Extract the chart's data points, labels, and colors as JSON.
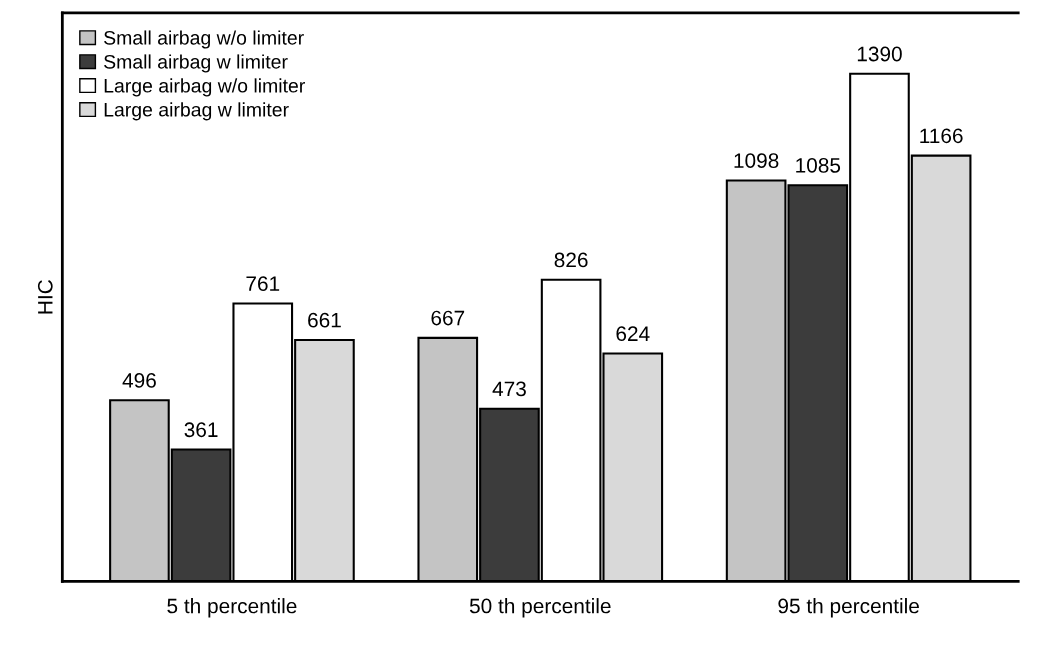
{
  "chart_data": {
    "type": "bar",
    "ylabel": "HIC",
    "categories": [
      "5 th percentile",
      "50 th percentile",
      "95 th percentile"
    ],
    "series": [
      {
        "name": "Small airbag w/o limiter",
        "color": "#c4c4c4",
        "values": [
          496,
          667,
          1098
        ]
      },
      {
        "name": "Small airbag w limiter",
        "color": "#3c3c3c",
        "values": [
          361,
          473,
          1085
        ]
      },
      {
        "name": "Large airbag w/o limiter",
        "color": "#ffffff",
        "values": [
          761,
          826,
          1390
        ]
      },
      {
        "name": "Large airbag w limiter",
        "color": "#d9d9d9",
        "values": [
          661,
          624,
          1166
        ]
      }
    ],
    "data_labels": true,
    "legend": "top left",
    "tick_labels": "x"
  }
}
